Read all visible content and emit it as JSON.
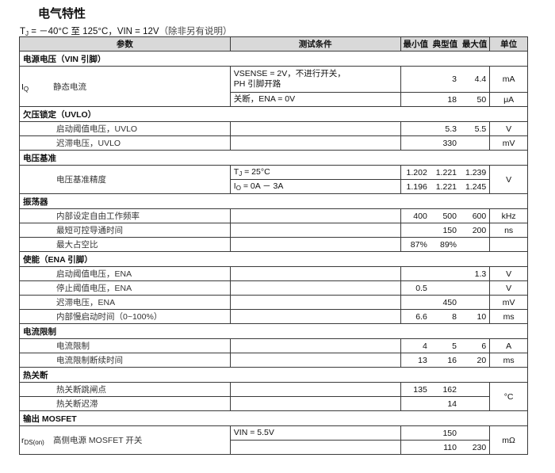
{
  "title": "电气特性",
  "conditions_line": {
    "tj_symbol": {
      "main": "T",
      "sub": "J"
    },
    "text": " = －40°C 至 125°C，VIN = 12V",
    "note": "（除非另有说明）"
  },
  "table": {
    "headers": [
      "参数",
      "测试条件",
      "最小值",
      "典型值",
      "最大值",
      "单位"
    ],
    "sections": [
      {
        "title": "电源电压（VIN 引脚）",
        "items": [
          {
            "symbol": {
              "main": "I",
              "sub": "Q"
            },
            "param": "静态电流",
            "rows": [
              {
                "cond": "VSENSE = 2V，不进行开关，\nPH 引脚开路",
                "min": "",
                "typ": "3",
                "max": "4.4",
                "unit": "mA"
              },
              {
                "cond": "关断，ENA = 0V",
                "min": "",
                "typ": "18",
                "max": "50",
                "unit": "μA"
              }
            ]
          }
        ]
      },
      {
        "title": "欠压锁定（UVLO）",
        "items": [
          {
            "param": "启动阈值电压，UVLO",
            "rows": [
              {
                "cond": "",
                "min": "",
                "typ": "5.3",
                "max": "5.5",
                "unit": "V"
              }
            ]
          },
          {
            "param": "迟滞电压，UVLO",
            "rows": [
              {
                "cond": "",
                "min": "",
                "typ": "330",
                "max": "",
                "unit": "mV"
              }
            ]
          }
        ]
      },
      {
        "title": "电压基准",
        "items": [
          {
            "param": "电压基准精度",
            "unit": "V",
            "rows": [
              {
                "cond_symbol": {
                  "main": "T",
                  "sub": "J"
                },
                "cond": " = 25°C",
                "min": "1.202",
                "typ": "1.221",
                "max": "1.239"
              },
              {
                "cond_symbol": {
                  "main": "I",
                  "sub": "O"
                },
                "cond": " = 0A － 3A",
                "min": "1.196",
                "typ": "1.221",
                "max": "1.245"
              }
            ]
          }
        ]
      },
      {
        "title": "振荡器",
        "items": [
          {
            "param": "内部设定自由工作频率",
            "rows": [
              {
                "cond": "",
                "min": "400",
                "typ": "500",
                "max": "600",
                "unit": "kHz"
              }
            ]
          },
          {
            "param": "最短可控导通时间",
            "rows": [
              {
                "cond": "",
                "min": "",
                "typ": "150",
                "max": "200",
                "unit": "ns"
              }
            ]
          },
          {
            "param": "最大占空比",
            "rows": [
              {
                "cond": "",
                "min": "87%",
                "typ": "89%",
                "max": "",
                "unit": ""
              }
            ]
          }
        ]
      },
      {
        "title": "使能（ENA 引脚）",
        "items": [
          {
            "param": "启动阈值电压，ENA",
            "rows": [
              {
                "cond": "",
                "min": "",
                "typ": "",
                "max": "1.3",
                "unit": "V"
              }
            ]
          },
          {
            "param": "停止阈值电压，ENA",
            "rows": [
              {
                "cond": "",
                "min": "0.5",
                "typ": "",
                "max": "",
                "unit": "V"
              }
            ]
          },
          {
            "param": "迟滞电压，ENA",
            "rows": [
              {
                "cond": "",
                "min": "",
                "typ": "450",
                "max": "",
                "unit": "mV"
              }
            ]
          },
          {
            "param": "内部慢启动时间（0~100%）",
            "rows": [
              {
                "cond": "",
                "min": "6.6",
                "typ": "8",
                "max": "10",
                "unit": "ms"
              }
            ]
          }
        ]
      },
      {
        "title": "电流限制",
        "items": [
          {
            "param": "电流限制",
            "rows": [
              {
                "cond": "",
                "min": "4",
                "typ": "5",
                "max": "6",
                "unit": "A"
              }
            ]
          },
          {
            "param": "电流限制断续时间",
            "rows": [
              {
                "cond": "",
                "min": "13",
                "typ": "16",
                "max": "20",
                "unit": "ms"
              }
            ]
          }
        ]
      },
      {
        "title": "热关断",
        "items": [
          {
            "param": "热关断跳闸点",
            "unit": "°C",
            "unit_group": "thermal",
            "rows": [
              {
                "cond": "",
                "min": "135",
                "typ": "162",
                "max": ""
              }
            ]
          },
          {
            "param": "热关断迟滞",
            "unit_group": "thermal",
            "rows": [
              {
                "cond": "",
                "min": "",
                "typ": "14",
                "max": ""
              }
            ]
          }
        ]
      },
      {
        "title": "输出 MOSFET",
        "items": [
          {
            "symbol": {
              "main": "r",
              "sub": "DS(on)"
            },
            "param": "高侧电源 MOSFET 开关",
            "unit": "mΩ",
            "rows": [
              {
                "cond": "VIN = 5.5V",
                "min": "",
                "typ": "150",
                "max": ""
              },
              {
                "cond": "",
                "min": "",
                "typ": "110",
                "max": "230"
              }
            ]
          }
        ]
      }
    ]
  }
}
